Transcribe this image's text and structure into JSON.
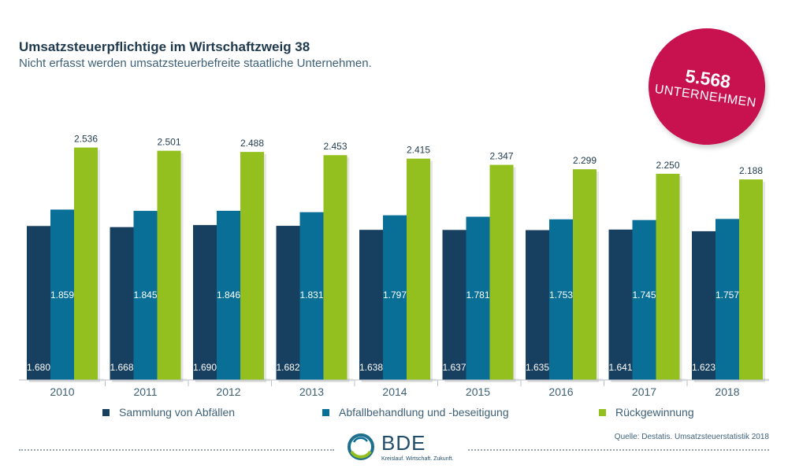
{
  "header": {
    "title": "Umsatzsteuerpflichtige im Wirtschaftzweig 38",
    "subtitle": "Nicht erfasst werden umsatzsteuerbefreite staatliche Unternehmen."
  },
  "badge": {
    "number": "5.568",
    "label": "UNTERNEHMEN",
    "color": "#c8114f"
  },
  "footer": {
    "source": "Quelle: Destatis. Umsatzsteuerstatistik 2018",
    "logo_name": "BDE",
    "logo_tagline": "Kreislauf. Wirtschaft. Zukunft."
  },
  "chart_data": {
    "type": "bar",
    "categories": [
      "2010",
      "2011",
      "2012",
      "2013",
      "2014",
      "2015",
      "2016",
      "2017",
      "2018"
    ],
    "series": [
      {
        "name": "Sammlung von Abfällen",
        "color": "#173f5f",
        "values": [
          1680,
          1668,
          1690,
          1682,
          1638,
          1637,
          1635,
          1641,
          1623
        ],
        "labels": [
          "1.680",
          "1.668",
          "1.690",
          "1.682",
          "1.638",
          "1.637",
          "1.635",
          "1.641",
          "1.623"
        ]
      },
      {
        "name": "Abfallbehandlung und -beseitigung",
        "color": "#0a6f97",
        "values": [
          1859,
          1845,
          1846,
          1831,
          1797,
          1781,
          1753,
          1745,
          1757
        ],
        "labels": [
          "1.859",
          "1.845",
          "1.846",
          "1.831",
          "1.797",
          "1.781",
          "1.753",
          "1.745",
          "1.757"
        ]
      },
      {
        "name": "Rückgewinnung",
        "color": "#93c01f",
        "values": [
          2536,
          2501,
          2488,
          2453,
          2415,
          2347,
          2299,
          2250,
          2188
        ],
        "labels": [
          "2.536",
          "2.501",
          "2.488",
          "2.453",
          "2.415",
          "2.347",
          "2.299",
          "2.250",
          "2.188"
        ]
      }
    ],
    "ylim": [
      0,
      2600
    ],
    "grid": false,
    "legend_position": "bottom"
  }
}
